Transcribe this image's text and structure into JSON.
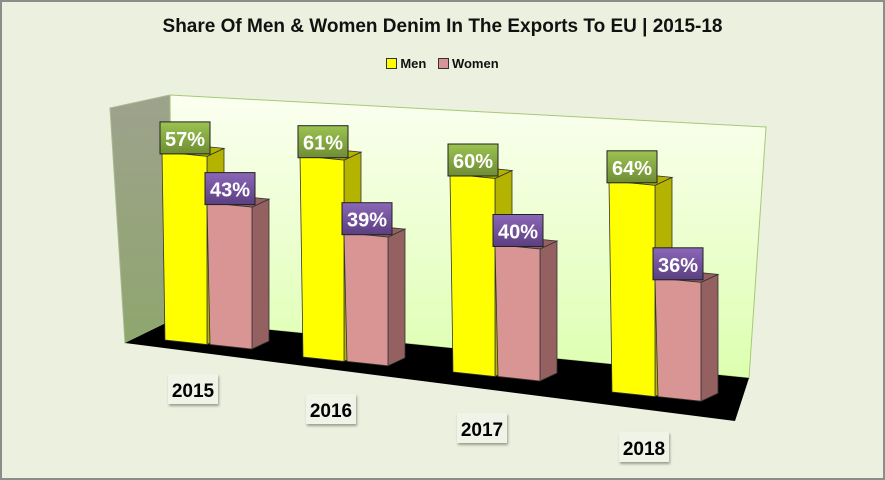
{
  "chart_data": {
    "type": "bar",
    "subtype": "3d-clustered-column",
    "title": "Share Of Men & Women Denim In The Exports To EU | 2015-18",
    "categories": [
      "2015",
      "2016",
      "2017",
      "2018"
    ],
    "series": [
      {
        "name": "Men",
        "values": [
          57,
          61,
          60,
          64
        ],
        "labels": [
          "57%",
          "61%",
          "60%",
          "64%"
        ],
        "color": "#ffff00",
        "side_color": "#b3b300",
        "label_bg": "#77933c"
      },
      {
        "name": "Women",
        "values": [
          43,
          39,
          40,
          36
        ],
        "labels": [
          "43%",
          "39%",
          "40%",
          "36%"
        ],
        "color": "#d99594",
        "side_color": "#946060",
        "label_bg": "#604a7b"
      }
    ],
    "xlabel": "",
    "ylabel": "",
    "ylim": [
      0,
      100
    ],
    "value_format": "percent",
    "legend_position": "top",
    "grid": false,
    "colors": {
      "background": "#ebf1de",
      "back_wall": "#e6ffc8",
      "side_wall": "#95a07a",
      "floor": "#000000"
    }
  }
}
